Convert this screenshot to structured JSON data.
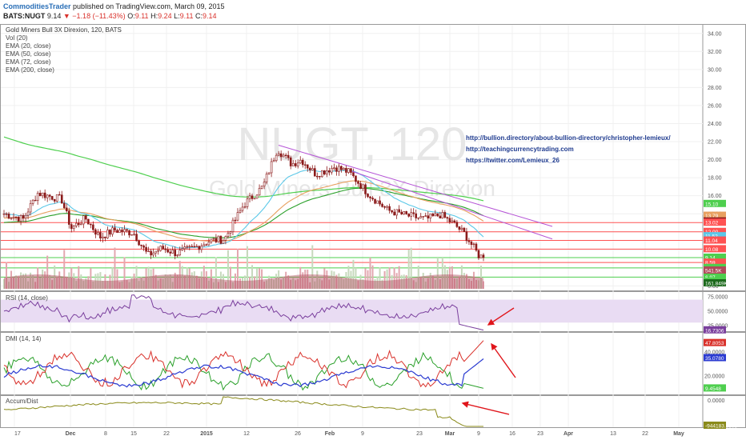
{
  "header": {
    "author": "CommoditiesTrader",
    "published": "published on TradingView.com, March 09, 2015",
    "symbol": "BATS:NUGT",
    "last": "9.14",
    "change": "▼ −1.18 (−11.43%)",
    "ohlc_label_o": "O:",
    "ohlc_o": "9.11",
    "ohlc_label_h": "H:",
    "ohlc_h": "9.24",
    "ohlc_label_l": "L:",
    "ohlc_l": "9.11",
    "ohlc_label_c": "C:",
    "ohlc_c": "9.14"
  },
  "watermark": {
    "symbol": "NUGT, 120",
    "name": "Gold Miners Bull 3X Direxion"
  },
  "legend": {
    "title": "Gold Miners Bull 3X Direxion, 120, BATS",
    "items": [
      "Vol (20)",
      "EMA (20, close)",
      "EMA (50, close)",
      "EMA (72, close)",
      "EMA (200, close)"
    ]
  },
  "links": [
    "http://bullion.directory/about-bullion-directory/christopher-lemieux/",
    "http://teachingcurrencytrading.com",
    "https://twitter.com/Lemieux_26"
  ],
  "panes": {
    "rsi_label": "RSI (14, close)",
    "dmi_label": "DMI (14, 14)",
    "ad_label": "Accum/Dist"
  },
  "colors": {
    "candle": "#8b1a1a",
    "ema20": "#5bc8e8",
    "ema50": "#e8a060",
    "ema72": "#2aa02a",
    "ema200": "#4ecf4e",
    "trend": "#b553d6",
    "support": "#ff5252",
    "rsi": "#7a3f9d",
    "dmi_plus": "#2aa02a",
    "dmi_minus": "#d9312b",
    "adx": "#2b3bd1",
    "ad": "#8a8a1a",
    "arrow": "#e0151b",
    "link": "#1f3b8f"
  },
  "chart_data": {
    "type": "line",
    "price_axis": [
      "34.00",
      "32.00",
      "30.00",
      "28.00",
      "26.00",
      "24.00",
      "22.00",
      "20.00",
      "18.00",
      "16.00",
      "14.00",
      "12.00",
      "10.00",
      "8.00",
      "6.00"
    ],
    "price_ylim": [
      5.5,
      34.6
    ],
    "price_badges": [
      {
        "text": "15.10",
        "bg": "#4ecf4e"
      },
      {
        "text": "13.79",
        "bg": "#e8a060"
      },
      {
        "text": "13.16",
        "bg": "#8b1a1a"
      },
      {
        "text": "13.02",
        "bg": "#ff5252"
      },
      {
        "text": "12.00",
        "bg": "#ff5252"
      },
      {
        "text": "11.52",
        "bg": "#5bc8e8"
      },
      {
        "text": "11.04",
        "bg": "#ff5252"
      },
      {
        "text": "10.08",
        "bg": "#ff5252"
      },
      {
        "text": "9.14",
        "bg": "#4ecf4e"
      },
      {
        "text": "8.59",
        "bg": "#ff5252"
      },
      {
        "text": "8.00",
        "bg": "#4ecf4e"
      },
      {
        "text": "6.97",
        "bg": "#4ecf4e"
      },
      {
        "text": "6.49",
        "bg": "#4ecf4e"
      }
    ],
    "horizontal_levels": [
      {
        "value": 13.02,
        "color": "#ff5252"
      },
      {
        "value": 12.0,
        "color": "#ff5252"
      },
      {
        "value": 11.04,
        "color": "#ff5252"
      },
      {
        "value": 10.08,
        "color": "#ff5252"
      },
      {
        "value": 9.14,
        "color": "#4ecf4e"
      },
      {
        "value": 8.59,
        "color": "#ff5252"
      },
      {
        "value": 8.0,
        "color": "#4ecf4e"
      },
      {
        "value": 6.97,
        "color": "#4ecf4e"
      }
    ],
    "volume_badges": [
      {
        "text": "541.5K",
        "bg": "#b0495a"
      },
      {
        "text": "161.849K",
        "bg": "#1d6a1d"
      }
    ],
    "rsi_axis": [
      "75.0000",
      "50.0000",
      "25.0000"
    ],
    "rsi_ylim": [
      15,
      82
    ],
    "rsi_last": "16.7306",
    "dmi_axis": [
      "40.0000",
      "20.0000"
    ],
    "dmi_ylim": [
      5,
      55
    ],
    "dmi_last": [
      {
        "text": "47.8053",
        "bg": "#d9312b"
      },
      {
        "text": "35.0780",
        "bg": "#2b3bd1"
      },
      {
        "text": "9.4548",
        "bg": "#4ecf4e"
      }
    ],
    "ad_axis": [
      "0.0000"
    ],
    "ad_last": "-944183.5808",
    "time_labels": [
      "17",
      "Dec",
      "8",
      "15",
      "22",
      "2015",
      "12",
      "26",
      "Feb",
      "9",
      "23",
      "Mar",
      "9",
      "16",
      "23",
      "Apr",
      "13",
      "22",
      "May"
    ],
    "series_summary": {
      "price_start": 14.0,
      "price_low_dec": 9.3,
      "price_high_jan": 21.3,
      "price_feb": 18.8,
      "price_end": 9.14
    }
  }
}
